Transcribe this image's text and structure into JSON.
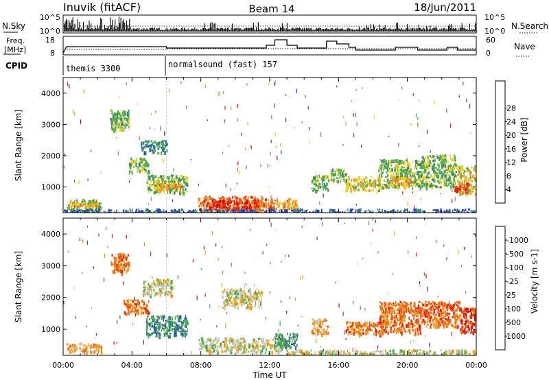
{
  "header": {
    "station": "Inuvik (fitACF)",
    "beam": "Beam 14",
    "date": "18/Jun/2011"
  },
  "top_panels": {
    "nsky_label": "N.Sky",
    "nsky_ticks": [
      "10^5",
      "10^0"
    ],
    "nsearch_label": "N.Search",
    "nsearch_ticks": [
      "10^5",
      "10^0"
    ],
    "freq_label_line1": "Freq.",
    "freq_label_line2": "[MHz]",
    "freq_ticks": [
      "18",
      "8"
    ],
    "nave_label": "Nave",
    "nave_ticks": [
      "60",
      "0"
    ],
    "cpid_label": "CPID",
    "cpid_segments": [
      {
        "name": "themis 3300",
        "start": "00:00",
        "end": "06:00"
      },
      {
        "name": "normalsound (fast) 157",
        "start": "06:00",
        "end": "24:00"
      }
    ]
  },
  "chart_data": [
    {
      "type": "heatmap",
      "title": "",
      "ylabel": "Slant Range [km]",
      "xlabel": "",
      "y_ticks": [
        1000,
        2000,
        3000,
        4000
      ],
      "ylim": [
        180,
        4500
      ],
      "xlim_hours": [
        0,
        24
      ],
      "colorbar": {
        "label": "Power [dB]",
        "ticks": [
          "4",
          "8",
          "12",
          "16",
          "20",
          "24",
          "28"
        ],
        "colors": [
          "#1f2fd8",
          "#2c5aa8",
          "#3a8a72",
          "#55b04a",
          "#f0d020",
          "#f4a020",
          "#ee6b14",
          "#e52a10",
          "#d80000"
        ]
      },
      "regions": [
        {
          "t0": 0.2,
          "t1": 2.2,
          "r0": 300,
          "r1": 620,
          "level": 3
        },
        {
          "t0": 0.4,
          "t1": 2.0,
          "r0": 400,
          "r1": 540,
          "level": 5
        },
        {
          "t0": 2.7,
          "t1": 3.8,
          "r0": 2800,
          "r1": 3500,
          "level": 3
        },
        {
          "t0": 3.8,
          "t1": 5.0,
          "r0": 1500,
          "r1": 1950,
          "level": 3
        },
        {
          "t0": 4.5,
          "t1": 6.0,
          "r0": 2100,
          "r1": 2500,
          "level": 2
        },
        {
          "t0": 4.8,
          "t1": 7.2,
          "r0": 850,
          "r1": 1400,
          "level": 3
        },
        {
          "t0": 5.4,
          "t1": 6.8,
          "r0": 950,
          "r1": 1150,
          "level": 5
        },
        {
          "t0": 7.8,
          "t1": 12.3,
          "r0": 250,
          "r1": 720,
          "level": 6
        },
        {
          "t0": 8.3,
          "t1": 11.4,
          "r0": 300,
          "r1": 600,
          "level": 7
        },
        {
          "t0": 12.3,
          "t1": 13.6,
          "r0": 300,
          "r1": 650,
          "level": 5
        },
        {
          "t0": 14.4,
          "t1": 15.4,
          "r0": 900,
          "r1": 1400,
          "level": 3
        },
        {
          "t0": 15.5,
          "t1": 16.5,
          "r0": 1200,
          "r1": 1600,
          "level": 3
        },
        {
          "t0": 16.4,
          "t1": 18.4,
          "r0": 900,
          "r1": 1350,
          "level": 4
        },
        {
          "t0": 18.3,
          "t1": 20.8,
          "r0": 1000,
          "r1": 1900,
          "level": 3
        },
        {
          "t0": 19.0,
          "t1": 20.3,
          "r0": 1100,
          "r1": 1400,
          "level": 5
        },
        {
          "t0": 20.8,
          "t1": 22.8,
          "r0": 1000,
          "r1": 2050,
          "level": 3
        },
        {
          "t0": 22.8,
          "t1": 24.0,
          "r0": 800,
          "r1": 1700,
          "level": 4
        },
        {
          "t0": 22.7,
          "t1": 23.5,
          "r0": 850,
          "r1": 1150,
          "level": 7
        },
        {
          "t0": 0.0,
          "t1": 24.0,
          "r0": 200,
          "r1": 320,
          "level": 1
        }
      ]
    },
    {
      "type": "heatmap",
      "title": "",
      "ylabel": "Slant Range [km]",
      "xlabel": "Time UT",
      "x_ticks": [
        "00:00",
        "04:00",
        "08:00",
        "12:00",
        "16:00",
        "20:00",
        "00:00"
      ],
      "y_ticks": [
        1000,
        2000,
        3000,
        4000
      ],
      "ylim": [
        180,
        4500
      ],
      "xlim_hours": [
        0,
        24
      ],
      "colorbar": {
        "label": "Velocity [m s-1]",
        "ticks": [
          "1000",
          "500",
          "100",
          "25",
          "-25",
          "-100",
          "-500",
          "-1000"
        ],
        "colors": [
          "#1f2fd8",
          "#2c5aa8",
          "#3a8a72",
          "#55b04a",
          "#c8c8c0",
          "#f0a010",
          "#ee6b14",
          "#e52a10",
          "#d80000"
        ]
      },
      "regions": [
        {
          "t0": 0.2,
          "t1": 2.2,
          "r0": 300,
          "r1": 600,
          "level": 5
        },
        {
          "t0": 2.7,
          "t1": 3.8,
          "r0": 2800,
          "r1": 3400,
          "level": 6
        },
        {
          "t0": 3.5,
          "t1": 5.0,
          "r0": 1500,
          "r1": 1950,
          "level": 6
        },
        {
          "t0": 4.6,
          "t1": 6.3,
          "r0": 2100,
          "r1": 2600,
          "level": 4
        },
        {
          "t0": 4.8,
          "t1": 7.2,
          "r0": 800,
          "r1": 1450,
          "level": 2
        },
        {
          "t0": 7.8,
          "t1": 13.0,
          "r0": 300,
          "r1": 750,
          "level": 4
        },
        {
          "t0": 9.2,
          "t1": 11.5,
          "r0": 1700,
          "r1": 2300,
          "level": 4
        },
        {
          "t0": 12.3,
          "t1": 13.6,
          "r0": 450,
          "r1": 900,
          "level": 2
        },
        {
          "t0": 14.4,
          "t1": 15.4,
          "r0": 850,
          "r1": 1350,
          "level": 5
        },
        {
          "t0": 16.4,
          "t1": 18.4,
          "r0": 850,
          "r1": 1250,
          "level": 6
        },
        {
          "t0": 18.3,
          "t1": 20.8,
          "r0": 900,
          "r1": 1900,
          "level": 6
        },
        {
          "t0": 20.8,
          "t1": 23.0,
          "r0": 1100,
          "r1": 1900,
          "level": 6
        },
        {
          "t0": 23.0,
          "t1": 24.0,
          "r0": 900,
          "r1": 1700,
          "level": 7
        },
        {
          "t0": 13.0,
          "t1": 24.0,
          "r0": 200,
          "r1": 380,
          "level": 4
        }
      ]
    }
  ]
}
